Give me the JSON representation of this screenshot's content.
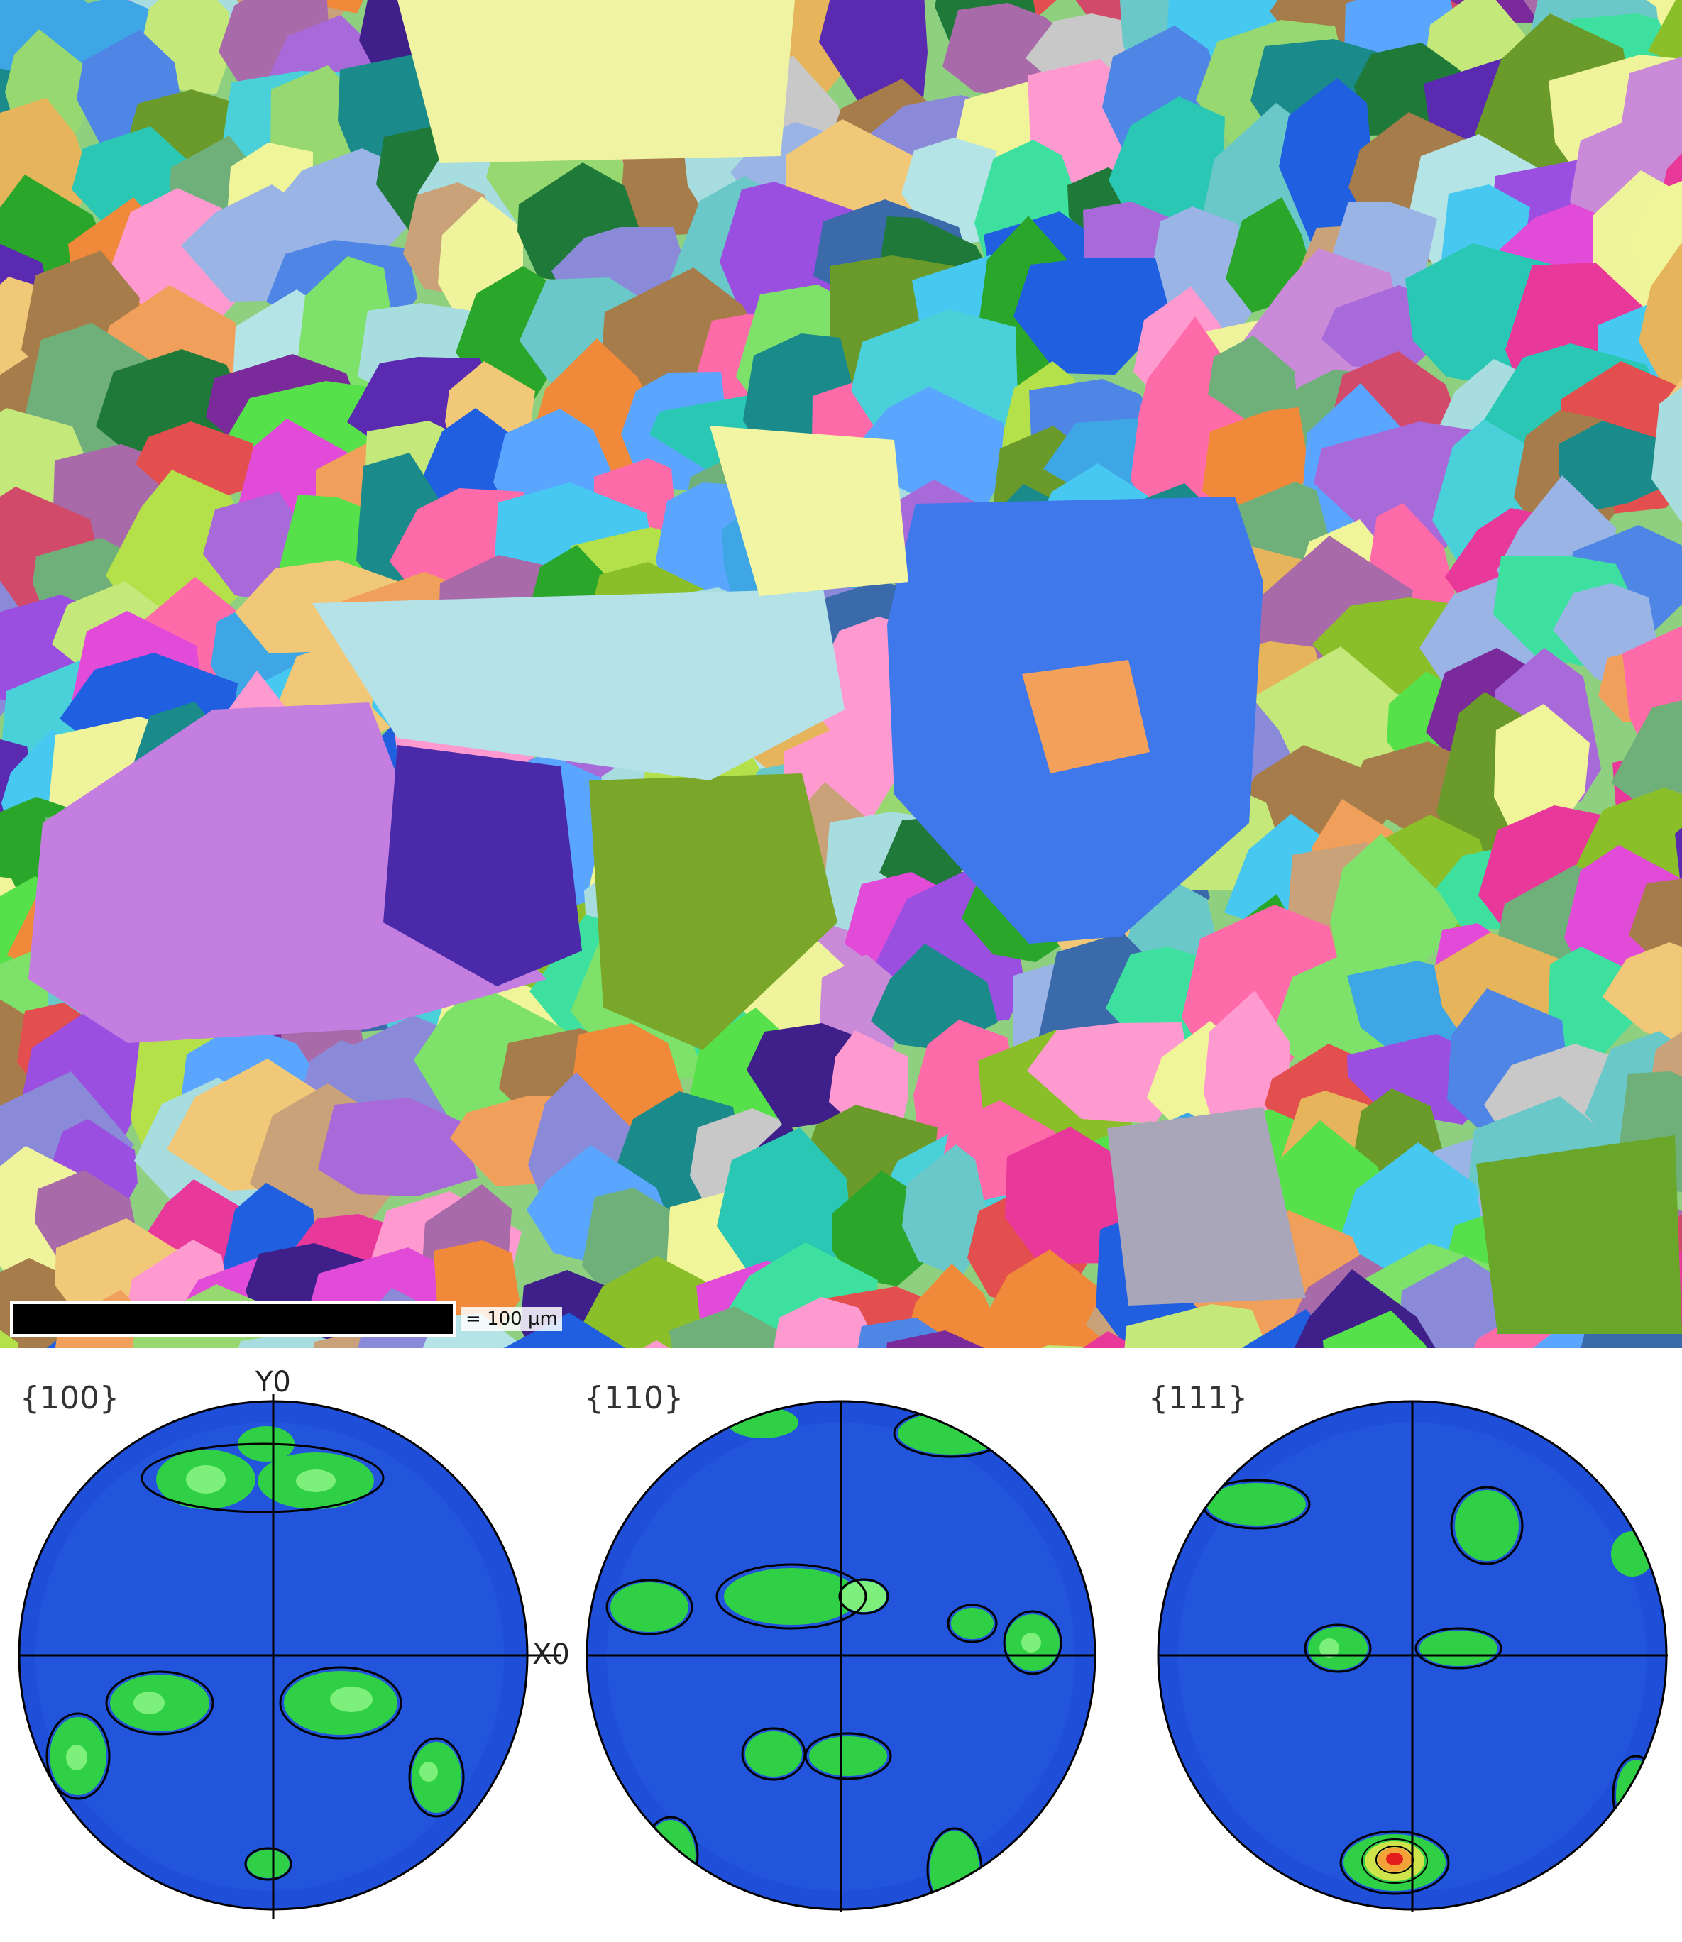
{
  "micrograph": {
    "scale_bar_label": "= 100 µm",
    "scale_bar_color": "#000000"
  },
  "pole_figures": [
    {
      "label": "{100}",
      "id": "pf-100"
    },
    {
      "label": "{110}",
      "id": "pf-110"
    },
    {
      "label": "{111}",
      "id": "pf-111"
    }
  ],
  "axes": {
    "y_label": "Y0",
    "x_label": "X0"
  },
  "colors": {
    "background_low": "#1f4fd8",
    "mid": "#2fcf46",
    "high": "#e31b1b",
    "contour": "#000000"
  }
}
